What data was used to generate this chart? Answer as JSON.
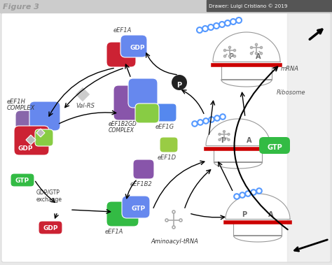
{
  "title": "Figure 3",
  "credit": "Drawer: Luigi Cristiano © 2019",
  "bg_color": "#e8e8e8",
  "header_color": "#cccccc",
  "content_bg": "#f0f0f0",
  "labels": {
    "eEF1A_top": "eEF1A",
    "GDP_top": "GDP",
    "eEF1H": "eEF1H",
    "COMPLEX": "COMPLEX",
    "ValRS": "Val-RS",
    "eEF1B2GD": "eEF1B2GD",
    "eEF1B2GD_C": "COMPLEX",
    "eEF1G": "eEF1G",
    "eEF1D": "eEF1D",
    "eEF1B2": "eEF1B2",
    "GTP_mid": "GTP",
    "eEF1A_bot": "eEF1A",
    "GDP_bot": "GDP",
    "GTP_label": "GTP",
    "exchange1": "GDP/GTP",
    "exchange2": "exchange",
    "mRNA": "mRNA",
    "Ribosome": "Ribosome",
    "AminoacyltRNA": "Aminoacyl-tRNA",
    "P": "P",
    "A": "A",
    "Pi": "P"
  },
  "colors": {
    "red_box": "#cc2233",
    "green_box": "#33bb44",
    "blue_box": "#5588ee",
    "purple_box": "#7755aa",
    "light_green_box": "#99cc44",
    "gray_diamond": "#aaaaaa",
    "ribosome_fill": "#ffffff",
    "ribosome_outline": "#999999",
    "ribosome_red": "#cc0000",
    "arrow_color": "#111111",
    "circle_blue": "#5599ff",
    "tRNA_color": "#aaaaaa",
    "pi_bg": "#222222",
    "pi_text": "#ffffff"
  }
}
